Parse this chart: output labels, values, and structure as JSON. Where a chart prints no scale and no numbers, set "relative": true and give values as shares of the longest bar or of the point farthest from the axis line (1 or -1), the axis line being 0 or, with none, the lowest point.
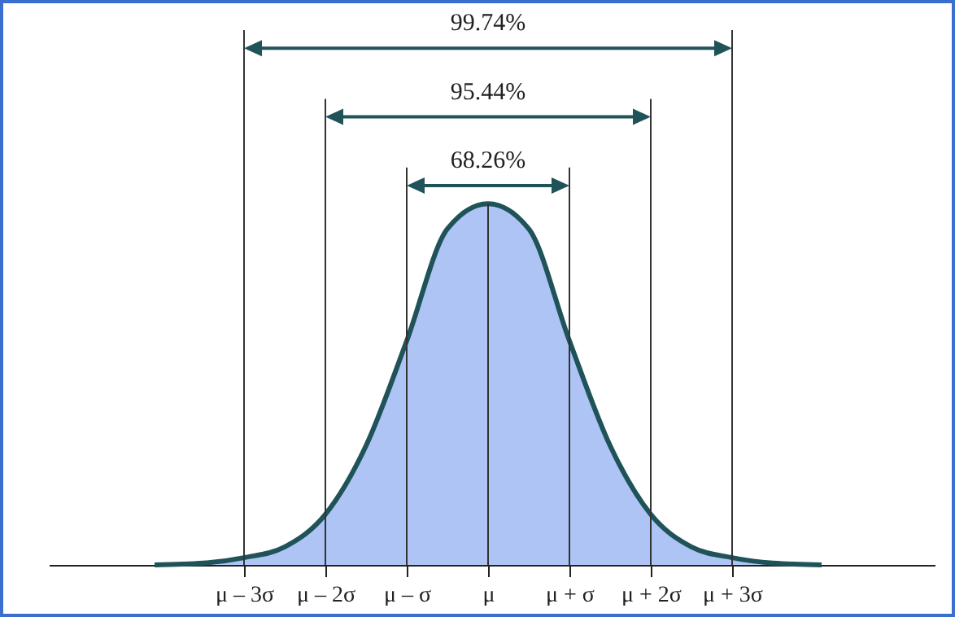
{
  "chart_data": {
    "type": "area",
    "relative": true,
    "x": [
      -4.1,
      -3.5,
      -3,
      -2.5,
      -2,
      -1.5,
      -1,
      -0.5,
      0,
      0.5,
      1,
      1.5,
      2,
      2.5,
      3,
      3.5,
      4.1
    ],
    "series": [
      {
        "color": "#aec4f5",
        "values": [
          0,
          0.005,
          0.02,
          0.05,
          0.14,
          0.33,
          0.62,
          0.93,
          1,
          0.93,
          0.62,
          0.33,
          0.14,
          0.05,
          0.02,
          0.005,
          0
        ]
      }
    ],
    "xlim": [
      -5.4,
      5.5
    ],
    "xticks": [
      {
        "value": -3,
        "label": "μ – 3σ"
      },
      {
        "value": -2,
        "label": "μ – 2σ"
      },
      {
        "value": -1,
        "label": "μ – σ"
      },
      {
        "value": 0,
        "label": "μ"
      },
      {
        "value": 1,
        "label": "μ + σ"
      },
      {
        "value": 2,
        "label": "μ + 2σ"
      },
      {
        "value": 3,
        "label": "μ + 3σ"
      }
    ],
    "annotations": [
      "68.26%",
      "95.44%",
      "99.74%"
    ],
    "grid": "x"
  }
}
